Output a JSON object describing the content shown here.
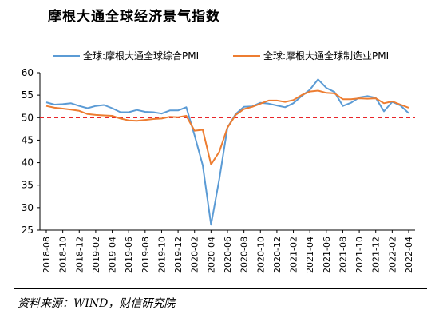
{
  "title": "摩根大通全球经济景气指数",
  "source": "资料来源：WIND，财信研究院",
  "chart_data": {
    "type": "line",
    "title": "摩根大通全球经济景气指数",
    "xlabel": "",
    "ylabel": "",
    "ylim": [
      25,
      60
    ],
    "yticks": [
      25,
      30,
      35,
      40,
      45,
      50,
      55,
      60
    ],
    "grid": false,
    "legend_position": "top",
    "reference_line": {
      "value": 50,
      "color": "#e8262a",
      "style": "dashed"
    },
    "categories": [
      "2018-08",
      "2018-10",
      "2018-12",
      "2019-02",
      "2019-04",
      "2019-06",
      "2019-08",
      "2019-10",
      "2019-12",
      "2020-02",
      "2020-04",
      "2020-06",
      "2020-08",
      "2020-10",
      "2020-12",
      "2021-02",
      "2021-04",
      "2021-06",
      "2021-08",
      "2021-10",
      "2021-12",
      "2022-02",
      "2022-04"
    ],
    "x": [
      "2018-08",
      "2018-09",
      "2018-10",
      "2018-11",
      "2018-12",
      "2019-01",
      "2019-02",
      "2019-03",
      "2019-04",
      "2019-05",
      "2019-06",
      "2019-07",
      "2019-08",
      "2019-09",
      "2019-10",
      "2019-11",
      "2019-12",
      "2020-01",
      "2020-02",
      "2020-03",
      "2020-04",
      "2020-05",
      "2020-06",
      "2020-07",
      "2020-08",
      "2020-09",
      "2020-10",
      "2020-11",
      "2020-12",
      "2021-01",
      "2021-02",
      "2021-03",
      "2021-04",
      "2021-05",
      "2021-06",
      "2021-07",
      "2021-08",
      "2021-09",
      "2021-10",
      "2021-11",
      "2021-12",
      "2022-01",
      "2022-02",
      "2022-03",
      "2022-04"
    ],
    "series": [
      {
        "name": "全球:摩根大通全球综合PMI",
        "color": "#5b9bd5",
        "values": [
          53.4,
          52.9,
          53.0,
          53.2,
          52.6,
          52.1,
          52.6,
          52.8,
          52.1,
          51.2,
          51.2,
          51.7,
          51.3,
          51.2,
          50.9,
          51.6,
          51.6,
          52.3,
          46.1,
          39.4,
          26.2,
          36.3,
          47.8,
          50.8,
          52.4,
          52.5,
          53.3,
          53.1,
          52.7,
          52.3,
          53.2,
          54.8,
          56.2,
          58.5,
          56.6,
          55.7,
          52.6,
          53.3,
          54.5,
          54.8,
          54.4,
          51.4,
          53.5,
          52.7,
          51.0
        ]
      },
      {
        "name": "全球:摩根大通全球制造业PMI",
        "color": "#ed7d31",
        "values": [
          52.6,
          52.2,
          52.0,
          51.8,
          51.5,
          50.8,
          50.6,
          50.5,
          50.4,
          49.8,
          49.4,
          49.3,
          49.5,
          49.7,
          49.8,
          50.2,
          50.1,
          50.4,
          47.1,
          47.3,
          39.6,
          42.4,
          47.8,
          50.6,
          51.9,
          52.4,
          53.1,
          53.8,
          53.8,
          53.5,
          53.9,
          55.0,
          55.8,
          56.0,
          55.5,
          55.4,
          54.1,
          54.1,
          54.3,
          54.2,
          54.3,
          53.2,
          53.6,
          52.9,
          52.2
        ]
      }
    ]
  }
}
